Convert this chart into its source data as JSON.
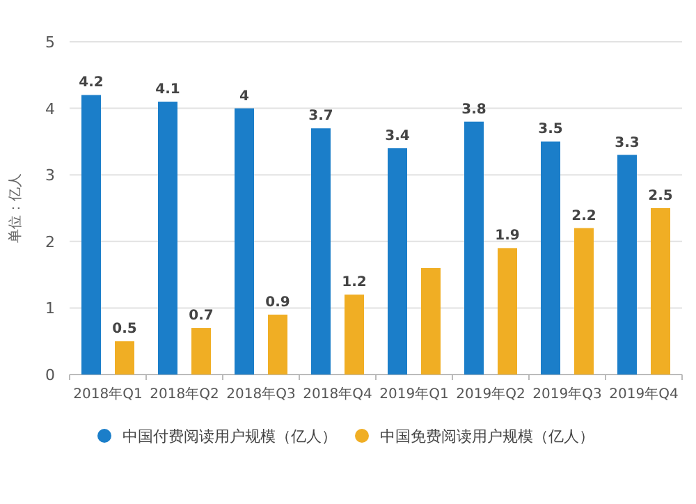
{
  "chart_data": {
    "type": "bar",
    "ylabel": "单位：亿人",
    "categories": [
      "2018年Q1",
      "2018年Q2",
      "2018年Q3",
      "2018年Q4",
      "2019年Q1",
      "2019年Q2",
      "2019年Q3",
      "2019年Q4"
    ],
    "series": [
      {
        "name": "中国付费阅读用户规模（亿人）",
        "color": "#1b7ec9",
        "values": [
          4.2,
          4.1,
          4,
          3.7,
          3.4,
          3.8,
          3.5,
          3.3
        ],
        "value_labels": [
          "4.2",
          "4.1",
          "4",
          "3.7",
          "3.4",
          "3.8",
          "3.5",
          "3.3"
        ]
      },
      {
        "name": "中国免费阅读用户规模（亿人）",
        "color": "#f0ae24",
        "values": [
          0.5,
          0.7,
          0.9,
          1.2,
          1.6,
          1.9,
          2.2,
          2.5
        ],
        "value_labels": [
          "0.5",
          "0.7",
          "0.9",
          "1.2",
          null,
          "1.9",
          "2.2",
          "2.5"
        ]
      }
    ],
    "ylim": [
      0,
      5
    ],
    "yticks": [
      0,
      1,
      2,
      3,
      4,
      5
    ],
    "grid": "y",
    "legend": "bottom",
    "marker": "circle"
  }
}
